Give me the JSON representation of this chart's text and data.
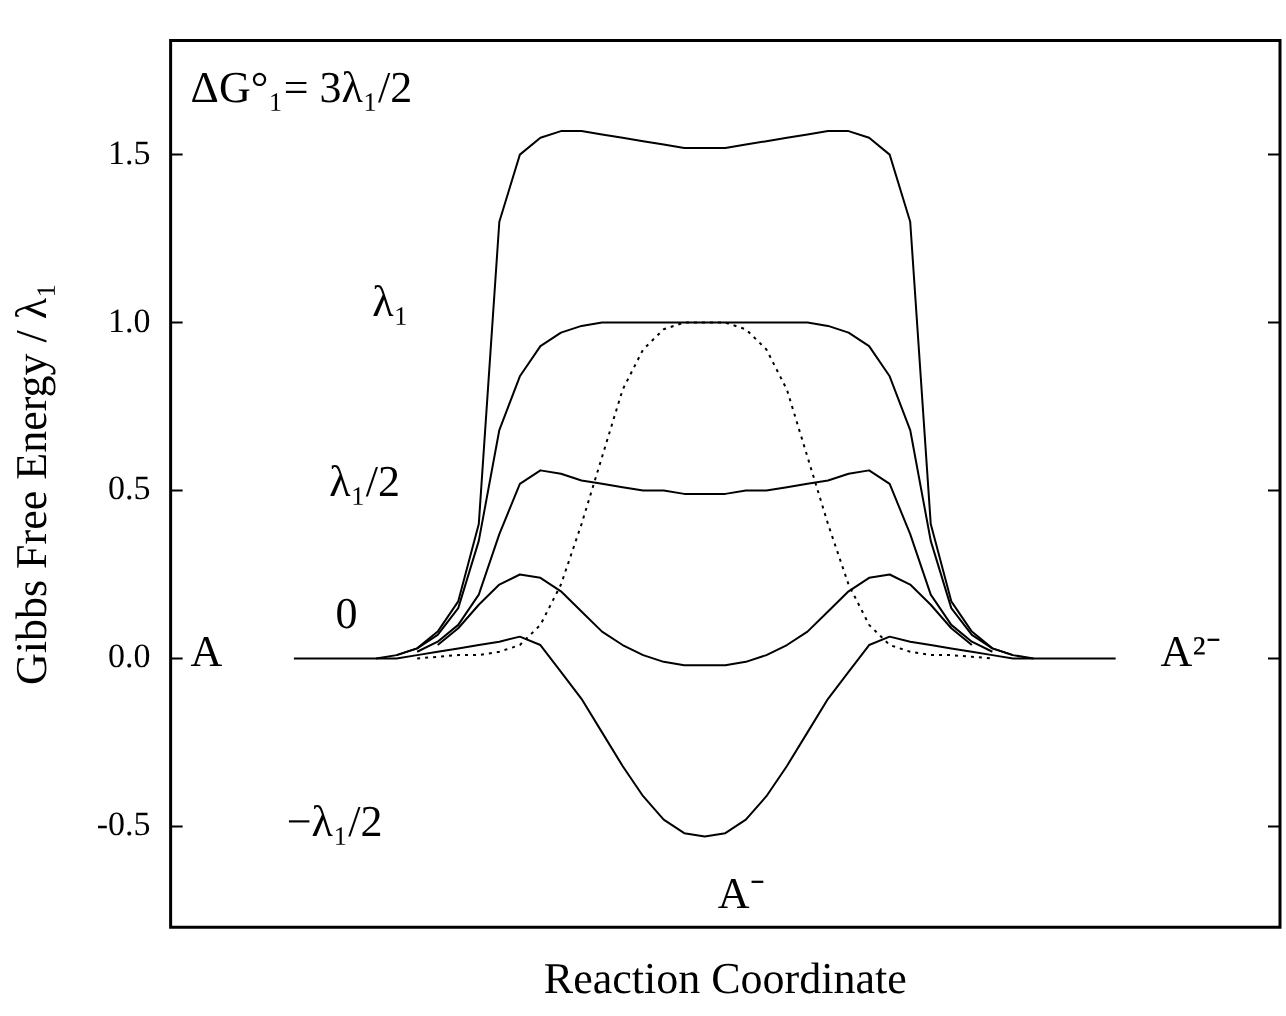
{
  "chart_data": {
    "type": "line",
    "xlabel": "Reaction Coordinate",
    "ylabel": "Gibbs Free Energy / λ₁",
    "tick_labels": "y",
    "marker": "none",
    "categories": [
      null,
      null,
      null,
      null,
      null,
      null,
      null,
      null,
      null,
      null,
      null,
      null,
      null,
      null,
      null,
      null,
      null,
      null,
      null,
      null,
      null,
      null,
      null,
      null,
      null,
      null,
      null,
      null,
      null,
      null,
      null,
      null,
      null,
      null,
      null,
      null,
      null,
      null,
      null,
      null,
      null,
      null,
      null,
      null,
      null,
      null,
      null,
      null,
      null,
      null,
      null,
      null,
      null,
      null,
      null
    ],
    "ylim": [
      -0.8,
      1.84
    ],
    "yticks": [
      -0.5,
      {
        "value": 0,
        "label": "0.0"
      },
      0.5,
      {
        "value": 1,
        "label": "1.0"
      },
      1.5
    ],
    "series": [
      {
        "color": "#000000",
        "line_style": "solid",
        "values": [
          null,
          null,
          null,
          null,
          null,
          null,
          null,
          null,
          null,
          null,
          0,
          0.01,
          0.03,
          0.08,
          0.17,
          0.4,
          1.3,
          1.5,
          1.55,
          1.57,
          1.57,
          1.56,
          1.55,
          1.54,
          1.53,
          1.52,
          1.52,
          1.52,
          1.53,
          1.54,
          1.55,
          1.56,
          1.57,
          1.57,
          1.55,
          1.5,
          1.3,
          0.4,
          0.17,
          0.08,
          0.03,
          0.01,
          0,
          null,
          null,
          null,
          null,
          null,
          null,
          null,
          null,
          null,
          null,
          null,
          null
        ]
      },
      {
        "color": "#000000",
        "line_style": "solid",
        "values": [
          null,
          null,
          null,
          null,
          null,
          null,
          null,
          null,
          null,
          null,
          null,
          0.01,
          0.03,
          0.07,
          0.15,
          0.35,
          0.68,
          0.84,
          0.93,
          0.97,
          0.99,
          1.0,
          1.0,
          1.0,
          1.0,
          1.0,
          1.0,
          1.0,
          1.0,
          1.0,
          1.0,
          1.0,
          0.99,
          0.97,
          0.93,
          0.84,
          0.68,
          0.35,
          0.15,
          0.07,
          0.03,
          0.01,
          null,
          null,
          null,
          null,
          null,
          null,
          null,
          null,
          null,
          null,
          null,
          null,
          null
        ]
      },
      {
        "color": "#000000",
        "line_style": "solid",
        "values": [
          null,
          null,
          null,
          null,
          null,
          null,
          null,
          null,
          null,
          null,
          null,
          null,
          0.02,
          0.05,
          0.1,
          0.19,
          0.37,
          0.52,
          0.56,
          0.55,
          0.53,
          0.52,
          0.51,
          0.5,
          0.5,
          0.49,
          0.49,
          0.49,
          0.5,
          0.5,
          0.51,
          0.52,
          0.53,
          0.55,
          0.56,
          0.52,
          0.37,
          0.19,
          0.1,
          0.05,
          0.02,
          null,
          null,
          null,
          null,
          null,
          null,
          null,
          null,
          null,
          null,
          null,
          null,
          null,
          null
        ]
      },
      {
        "color": "#000000",
        "line_style": "solid",
        "values": [
          null,
          null,
          null,
          null,
          null,
          null,
          null,
          null,
          null,
          null,
          null,
          null,
          null,
          0.04,
          0.09,
          0.16,
          0.22,
          0.25,
          0.24,
          0.2,
          0.14,
          0.08,
          0.04,
          0.01,
          -0.01,
          -0.02,
          -0.02,
          -0.02,
          -0.01,
          0.01,
          0.04,
          0.08,
          0.14,
          0.2,
          0.24,
          0.25,
          0.22,
          0.16,
          0.09,
          0.04,
          null,
          null,
          null,
          null,
          null,
          null,
          null,
          null,
          null,
          null,
          null,
          null,
          null,
          null,
          null
        ]
      },
      {
        "color": "#000000",
        "line_style": "solid",
        "values": [
          null,
          null,
          null,
          null,
          null,
          null,
          0,
          0,
          0,
          0,
          0,
          0,
          0.01,
          0.02,
          0.03,
          0.04,
          0.05,
          0.065,
          0.04,
          -0.04,
          -0.12,
          -0.22,
          -0.32,
          -0.41,
          -0.48,
          -0.52,
          -0.53,
          -0.52,
          -0.48,
          -0.41,
          -0.32,
          -0.22,
          -0.12,
          -0.04,
          0.04,
          0.065,
          0.05,
          0.04,
          0.03,
          0.02,
          0.01,
          0,
          0,
          0,
          0,
          0,
          0,
          null,
          null,
          null,
          null,
          null,
          null,
          null,
          null
        ]
      },
      {
        "color": "#000000",
        "line_style": "dotted",
        "values": [
          null,
          null,
          null,
          null,
          null,
          null,
          null,
          null,
          null,
          null,
          null,
          null,
          0,
          0.005,
          0.01,
          0.01,
          0.02,
          0.04,
          0.1,
          0.22,
          0.4,
          0.6,
          0.8,
          0.92,
          0.98,
          1.0,
          1.0,
          1.0,
          0.98,
          0.92,
          0.8,
          0.6,
          0.4,
          0.22,
          0.1,
          0.04,
          0.02,
          0.01,
          0.01,
          0.005,
          0,
          null,
          null,
          null,
          null,
          null,
          null,
          null,
          null,
          null,
          null,
          null,
          null,
          null,
          null
        ]
      }
    ],
    "annotations": [
      "ΔG°₁= 3λ₁/2",
      "λ₁",
      "λ₁/2",
      "0",
      "−λ₁/2",
      "A",
      "A²⁻",
      "A⁻"
    ]
  }
}
